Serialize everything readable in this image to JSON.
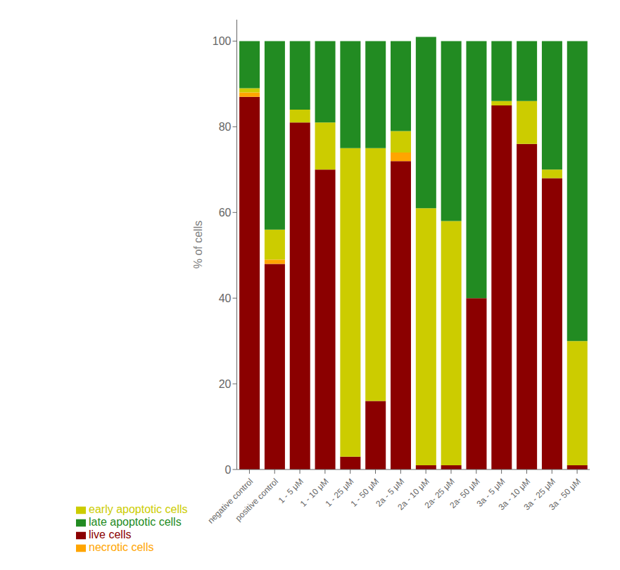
{
  "chart_data": {
    "type": "bar",
    "stacked": true,
    "ylabel": "% of cells",
    "categories": [
      "negative control",
      "positive control",
      "1 - 5 μM",
      "1 - 10 μM",
      "1 - 25 μM",
      "1 - 50 μM",
      "2a - 5 μM",
      "2a - 10 μM",
      "2a- 25 μM",
      "2a- 50 μM",
      "3a - 5 μM",
      "3a - 10 μM",
      "3a - 25 μM",
      "3a - 50 μM"
    ],
    "series": [
      {
        "name": "live cells",
        "color": "#8B0000",
        "values": [
          87,
          48,
          81,
          70,
          3,
          16,
          72,
          1,
          1,
          40,
          85,
          76,
          68,
          1
        ]
      },
      {
        "name": "necrotic cells",
        "color": "#FFA500",
        "values": [
          1,
          1,
          0,
          0,
          0,
          0,
          2,
          0,
          0,
          0,
          0,
          0,
          0,
          0
        ]
      },
      {
        "name": "early apoptotic cells",
        "color": "#CCCC00",
        "values": [
          1,
          7,
          3,
          11,
          72,
          59,
          5,
          60,
          57,
          0,
          1,
          10,
          2,
          29
        ]
      },
      {
        "name": "late apoptotic cells",
        "color": "#228B22",
        "values": [
          11,
          44,
          16,
          19,
          25,
          25,
          21,
          40,
          42,
          60,
          14,
          14,
          30,
          70
        ]
      }
    ],
    "ylim": [
      0,
      105
    ],
    "yticks": [
      0,
      20,
      40,
      60,
      80,
      100
    ],
    "grid": false,
    "legend": "bottom"
  }
}
